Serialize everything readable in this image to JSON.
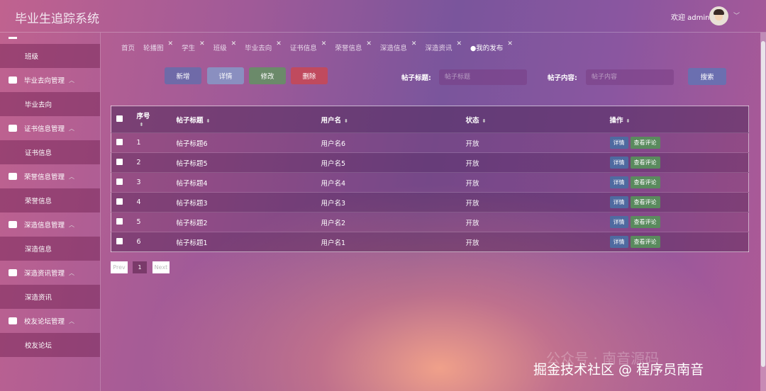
{
  "header": {
    "title": "毕业生追踪系统",
    "welcome": "欢迎 admin"
  },
  "sidebar": {
    "items": [
      {
        "type": "sub",
        "label": "班级"
      },
      {
        "type": "group",
        "label": "毕业去向管理"
      },
      {
        "type": "sub",
        "label": "毕业去向"
      },
      {
        "type": "group",
        "label": "证书信息管理"
      },
      {
        "type": "sub",
        "label": "证书信息"
      },
      {
        "type": "group",
        "label": "荣誉信息管理"
      },
      {
        "type": "sub",
        "label": "荣誉信息"
      },
      {
        "type": "group",
        "label": "深造信息管理"
      },
      {
        "type": "sub",
        "label": "深造信息"
      },
      {
        "type": "group",
        "label": "深造资讯管理"
      },
      {
        "type": "sub",
        "label": "深造资讯"
      },
      {
        "type": "group",
        "label": "校友论坛管理"
      },
      {
        "type": "sub",
        "label": "校友论坛"
      }
    ]
  },
  "tabs": [
    {
      "label": "首页",
      "close": false
    },
    {
      "label": "轮播图",
      "close": true
    },
    {
      "label": "学生",
      "close": true
    },
    {
      "label": "班级",
      "close": true
    },
    {
      "label": "毕业去向",
      "close": true
    },
    {
      "label": "证书信息",
      "close": true
    },
    {
      "label": "荣誉信息",
      "close": true
    },
    {
      "label": "深造信息",
      "close": true
    },
    {
      "label": "深造资讯",
      "close": true
    },
    {
      "label": "●我的发布",
      "close": true,
      "active": true
    }
  ],
  "toolbar": {
    "add": "新增",
    "detail": "详情",
    "edit": "修改",
    "delete": "删除",
    "search": "搜索"
  },
  "search": {
    "title_label": "帖子标题:",
    "title_placeholder": "帖子标题",
    "content_label": "帖子内容:",
    "content_placeholder": "帖子内容"
  },
  "table": {
    "columns": [
      "序号",
      "帖子标题",
      "用户名",
      "状态",
      "操作"
    ],
    "rows": [
      [
        "1",
        "帖子标题6",
        "用户名6",
        "开放"
      ],
      [
        "2",
        "帖子标题5",
        "用户名5",
        "开放"
      ],
      [
        "3",
        "帖子标题4",
        "用户名4",
        "开放"
      ],
      [
        "4",
        "帖子标题3",
        "用户名3",
        "开放"
      ],
      [
        "5",
        "帖子标题2",
        "用户名2",
        "开放"
      ],
      [
        "6",
        "帖子标题1",
        "用户名1",
        "开放"
      ]
    ],
    "row_actions": {
      "detail": "详情",
      "comments": "查看评论"
    }
  },
  "pagination": {
    "prev": "Prev",
    "current": "1",
    "next": "Next"
  },
  "watermark": {
    "line1": "公众号 · 南音源码",
    "line2": "掘金技术社区 @ 程序员南音"
  },
  "colors": {
    "add": "#6f6aa8",
    "detail": "#8a8fc0",
    "edit": "#6b8a6a",
    "delete": "#c04a5e",
    "search": "#6b6fb0",
    "row_detail": "#4f6aa0",
    "row_comments": "#5a8a5e"
  }
}
